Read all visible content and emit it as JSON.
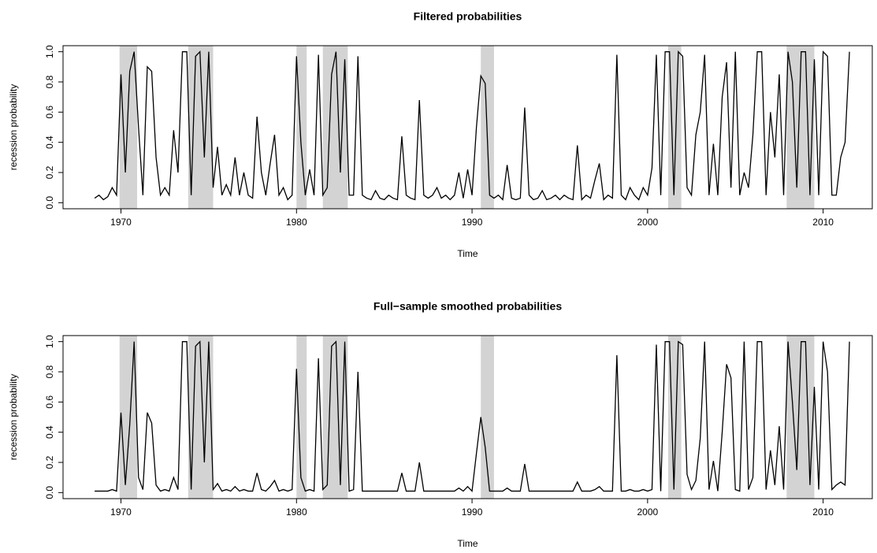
{
  "chart_data": [
    {
      "type": "line",
      "title": "Filtered probabilities",
      "xlabel": "Time",
      "ylabel": "recession probability",
      "xlim": [
        1966.7,
        2012.8
      ],
      "ylim": [
        -0.04,
        1.04
      ],
      "xticks": [
        1970,
        1980,
        1990,
        2000,
        2010
      ],
      "yticks": [
        {
          "value": 0,
          "label": "0.0"
        },
        0.2,
        0.4,
        0.6,
        0.8,
        {
          "value": 1,
          "label": "1.0"
        }
      ],
      "shaded_regions": [
        [
          1969.92,
          1970.92
        ],
        [
          1973.83,
          1975.25
        ],
        [
          1980.0,
          1980.58
        ],
        [
          1981.5,
          1982.92
        ],
        [
          1990.5,
          1991.25
        ],
        [
          2001.17,
          2001.92
        ],
        [
          2007.92,
          2009.5
        ]
      ],
      "shade_color": "#d3d3d3",
      "x": [
        1968.5,
        1968.75,
        1969,
        1969.25,
        1969.5,
        1969.75,
        1970,
        1970.25,
        1970.5,
        1970.75,
        1971,
        1971.25,
        1971.5,
        1971.75,
        1972,
        1972.25,
        1972.5,
        1972.75,
        1973,
        1973.25,
        1973.5,
        1973.75,
        1974,
        1974.25,
        1974.5,
        1974.75,
        1975,
        1975.25,
        1975.5,
        1975.75,
        1976,
        1976.25,
        1976.5,
        1976.75,
        1977,
        1977.25,
        1977.5,
        1977.75,
        1978,
        1978.25,
        1978.5,
        1978.75,
        1979,
        1979.25,
        1979.5,
        1979.75,
        1980,
        1980.25,
        1980.5,
        1980.75,
        1981,
        1981.25,
        1981.5,
        1981.75,
        1982,
        1982.25,
        1982.5,
        1982.75,
        1983,
        1983.25,
        1983.5,
        1983.75,
        1984,
        1984.25,
        1984.5,
        1984.75,
        1985,
        1985.25,
        1985.5,
        1985.75,
        1986,
        1986.25,
        1986.5,
        1986.75,
        1987,
        1987.25,
        1987.5,
        1987.75,
        1988,
        1988.25,
        1988.5,
        1988.75,
        1989,
        1989.25,
        1989.5,
        1989.75,
        1990,
        1990.25,
        1990.5,
        1990.75,
        1991,
        1991.25,
        1991.5,
        1991.75,
        1992,
        1992.25,
        1992.5,
        1992.75,
        1993,
        1993.25,
        1993.5,
        1993.75,
        1994,
        1994.25,
        1994.5,
        1994.75,
        1995,
        1995.25,
        1995.5,
        1995.75,
        1996,
        1996.25,
        1996.5,
        1996.75,
        1997,
        1997.25,
        1997.5,
        1997.75,
        1998,
        1998.25,
        1998.5,
        1998.75,
        1999,
        1999.25,
        1999.5,
        1999.75,
        2000,
        2000.25,
        2000.5,
        2000.75,
        2001,
        2001.25,
        2001.5,
        2001.75,
        2002,
        2002.25,
        2002.5,
        2002.75,
        2003,
        2003.25,
        2003.5,
        2003.75,
        2004,
        2004.25,
        2004.5,
        2004.75,
        2005,
        2005.25,
        2005.5,
        2005.75,
        2006,
        2006.25,
        2006.5,
        2006.75,
        2007,
        2007.25,
        2007.5,
        2007.75,
        2008,
        2008.25,
        2008.5,
        2008.75,
        2009,
        2009.25,
        2009.5,
        2009.75,
        2010,
        2010.25,
        2010.5,
        2010.75,
        2011,
        2011.25,
        2011.5
      ],
      "series": [
        {
          "color": "#000000",
          "values": [
            0.03,
            0.05,
            0.02,
            0.04,
            0.1,
            0.05,
            0.85,
            0.2,
            0.87,
            1.0,
            0.5,
            0.05,
            0.9,
            0.87,
            0.3,
            0.05,
            0.1,
            0.05,
            0.48,
            0.2,
            1.0,
            1.0,
            0.05,
            0.97,
            1.0,
            0.3,
            1.0,
            0.1,
            0.37,
            0.05,
            0.12,
            0.05,
            0.3,
            0.05,
            0.2,
            0.05,
            0.03,
            0.57,
            0.2,
            0.05,
            0.26,
            0.45,
            0.05,
            0.1,
            0.02,
            0.05,
            0.97,
            0.4,
            0.05,
            0.22,
            0.05,
            0.98,
            0.05,
            0.1,
            0.85,
            1.0,
            0.2,
            0.95,
            0.05,
            0.05,
            0.97,
            0.05,
            0.03,
            0.02,
            0.08,
            0.03,
            0.02,
            0.05,
            0.03,
            0.02,
            0.44,
            0.05,
            0.03,
            0.02,
            0.68,
            0.05,
            0.03,
            0.05,
            0.1,
            0.03,
            0.05,
            0.02,
            0.05,
            0.2,
            0.03,
            0.22,
            0.05,
            0.5,
            0.84,
            0.79,
            0.05,
            0.03,
            0.05,
            0.02,
            0.25,
            0.03,
            0.02,
            0.03,
            0.63,
            0.05,
            0.02,
            0.03,
            0.08,
            0.02,
            0.03,
            0.05,
            0.02,
            0.05,
            0.03,
            0.02,
            0.38,
            0.02,
            0.05,
            0.03,
            0.15,
            0.26,
            0.02,
            0.05,
            0.03,
            0.98,
            0.05,
            0.02,
            0.1,
            0.05,
            0.02,
            0.1,
            0.05,
            0.23,
            0.98,
            0.05,
            1.0,
            1.0,
            0.05,
            1.0,
            0.97,
            0.1,
            0.05,
            0.45,
            0.6,
            0.98,
            0.05,
            0.39,
            0.05,
            0.7,
            0.93,
            0.1,
            1.0,
            0.05,
            0.2,
            0.1,
            0.45,
            1.0,
            1.0,
            0.05,
            0.6,
            0.3,
            0.85,
            0.05,
            1.0,
            0.8,
            0.1,
            1.0,
            1.0,
            0.05,
            0.95,
            0.05,
            1.0,
            0.97,
            0.05,
            0.05,
            0.3,
            0.4,
            1.0
          ]
        }
      ]
    },
    {
      "type": "line",
      "title": "Full−sample smoothed probabilities",
      "xlabel": "Time",
      "ylabel": "recession probability",
      "xlim": [
        1966.7,
        2012.8
      ],
      "ylim": [
        -0.04,
        1.04
      ],
      "xticks": [
        1970,
        1980,
        1990,
        2000,
        2010
      ],
      "yticks": [
        {
          "value": 0,
          "label": "0.0"
        },
        0.2,
        0.4,
        0.6,
        0.8,
        {
          "value": 1,
          "label": "1.0"
        }
      ],
      "shaded_regions": [
        [
          1969.92,
          1970.92
        ],
        [
          1973.83,
          1975.25
        ],
        [
          1980.0,
          1980.58
        ],
        [
          1981.5,
          1982.92
        ],
        [
          1990.5,
          1991.25
        ],
        [
          2001.17,
          2001.92
        ],
        [
          2007.92,
          2009.5
        ]
      ],
      "shade_color": "#d3d3d3",
      "x": [
        1968.5,
        1968.75,
        1969,
        1969.25,
        1969.5,
        1969.75,
        1970,
        1970.25,
        1970.5,
        1970.75,
        1971,
        1971.25,
        1971.5,
        1971.75,
        1972,
        1972.25,
        1972.5,
        1972.75,
        1973,
        1973.25,
        1973.5,
        1973.75,
        1974,
        1974.25,
        1974.5,
        1974.75,
        1975,
        1975.25,
        1975.5,
        1975.75,
        1976,
        1976.25,
        1976.5,
        1976.75,
        1977,
        1977.25,
        1977.5,
        1977.75,
        1978,
        1978.25,
        1978.5,
        1978.75,
        1979,
        1979.25,
        1979.5,
        1979.75,
        1980,
        1980.25,
        1980.5,
        1980.75,
        1981,
        1981.25,
        1981.5,
        1981.75,
        1982,
        1982.25,
        1982.5,
        1982.75,
        1983,
        1983.25,
        1983.5,
        1983.75,
        1984,
        1984.25,
        1984.5,
        1984.75,
        1985,
        1985.25,
        1985.5,
        1985.75,
        1986,
        1986.25,
        1986.5,
        1986.75,
        1987,
        1987.25,
        1987.5,
        1987.75,
        1988,
        1988.25,
        1988.5,
        1988.75,
        1989,
        1989.25,
        1989.5,
        1989.75,
        1990,
        1990.25,
        1990.5,
        1990.75,
        1991,
        1991.25,
        1991.5,
        1991.75,
        1992,
        1992.25,
        1992.5,
        1992.75,
        1993,
        1993.25,
        1993.5,
        1993.75,
        1994,
        1994.25,
        1994.5,
        1994.75,
        1995,
        1995.25,
        1995.5,
        1995.75,
        1996,
        1996.25,
        1996.5,
        1996.75,
        1997,
        1997.25,
        1997.5,
        1997.75,
        1998,
        1998.25,
        1998.5,
        1998.75,
        1999,
        1999.25,
        1999.5,
        1999.75,
        2000,
        2000.25,
        2000.5,
        2000.75,
        2001,
        2001.25,
        2001.5,
        2001.75,
        2002,
        2002.25,
        2002.5,
        2002.75,
        2003,
        2003.25,
        2003.5,
        2003.75,
        2004,
        2004.25,
        2004.5,
        2004.75,
        2005,
        2005.25,
        2005.5,
        2005.75,
        2006,
        2006.25,
        2006.5,
        2006.75,
        2007,
        2007.25,
        2007.5,
        2007.75,
        2008,
        2008.25,
        2008.5,
        2008.75,
        2009,
        2009.25,
        2009.5,
        2009.75,
        2010,
        2010.25,
        2010.5,
        2010.75,
        2011,
        2011.25,
        2011.5
      ],
      "series": [
        {
          "color": "#000000",
          "values": [
            0.01,
            0.01,
            0.01,
            0.01,
            0.02,
            0.01,
            0.53,
            0.05,
            0.45,
            1.0,
            0.1,
            0.02,
            0.53,
            0.46,
            0.05,
            0.01,
            0.02,
            0.01,
            0.1,
            0.02,
            1.0,
            1.0,
            0.02,
            0.97,
            1.0,
            0.2,
            1.0,
            0.02,
            0.06,
            0.01,
            0.02,
            0.01,
            0.04,
            0.01,
            0.02,
            0.01,
            0.01,
            0.13,
            0.02,
            0.01,
            0.04,
            0.08,
            0.01,
            0.02,
            0.01,
            0.02,
            0.82,
            0.1,
            0.01,
            0.02,
            0.01,
            0.89,
            0.02,
            0.05,
            0.97,
            1.0,
            0.05,
            1.0,
            0.01,
            0.02,
            0.8,
            0.01,
            0.01,
            0.01,
            0.01,
            0.01,
            0.01,
            0.01,
            0.01,
            0.01,
            0.13,
            0.01,
            0.01,
            0.01,
            0.2,
            0.01,
            0.01,
            0.01,
            0.01,
            0.01,
            0.01,
            0.01,
            0.01,
            0.03,
            0.01,
            0.04,
            0.01,
            0.26,
            0.5,
            0.3,
            0.01,
            0.01,
            0.01,
            0.01,
            0.03,
            0.01,
            0.01,
            0.01,
            0.19,
            0.01,
            0.01,
            0.01,
            0.01,
            0.01,
            0.01,
            0.01,
            0.01,
            0.01,
            0.01,
            0.01,
            0.07,
            0.01,
            0.01,
            0.01,
            0.02,
            0.04,
            0.01,
            0.01,
            0.01,
            0.91,
            0.01,
            0.01,
            0.02,
            0.01,
            0.01,
            0.02,
            0.01,
            0.02,
            0.98,
            0.01,
            1.0,
            1.0,
            0.02,
            1.0,
            0.98,
            0.12,
            0.02,
            0.08,
            0.36,
            1.0,
            0.02,
            0.21,
            0.01,
            0.4,
            0.85,
            0.76,
            0.02,
            0.01,
            1.0,
            0.02,
            0.1,
            1.0,
            1.0,
            0.02,
            0.28,
            0.05,
            0.44,
            0.02,
            1.0,
            0.6,
            0.15,
            1.0,
            1.0,
            0.05,
            0.7,
            0.02,
            1.0,
            0.8,
            0.02,
            0.05,
            0.07,
            0.05,
            1.0
          ]
        }
      ]
    }
  ]
}
